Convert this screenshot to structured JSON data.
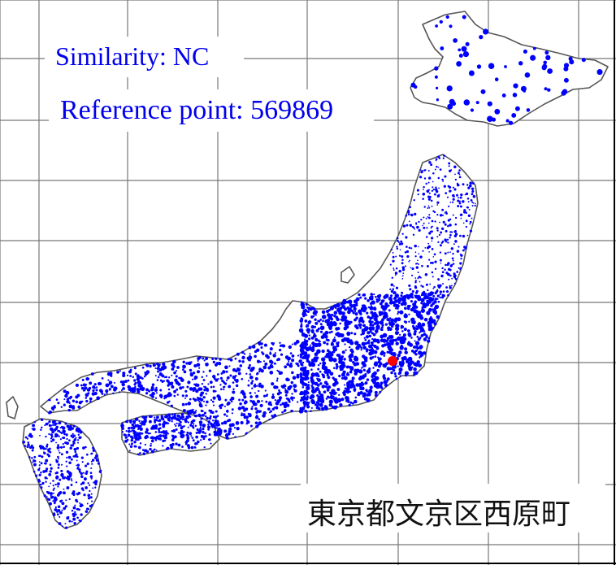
{
  "map": {
    "similarity_label": "Similarity: NC",
    "reference_label": "Reference point: 569869",
    "place_name": "東京都文京区西原町"
  },
  "colors": {
    "background": "#ffffff",
    "grid": "#777777",
    "coastline": "#555555",
    "point": "#0000ff",
    "reference_point": "#ff0000",
    "text_blue": "#0000ee"
  }
}
